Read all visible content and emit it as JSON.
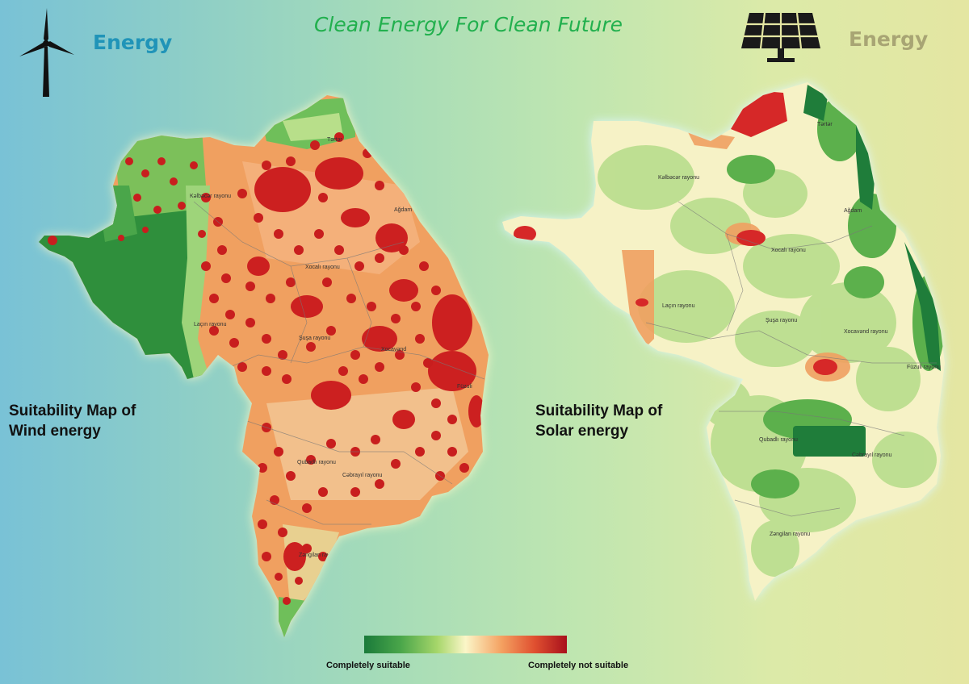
{
  "header": {
    "title": "Clean Energy For Clean Future",
    "left_label": "Energy",
    "right_label": "Energy",
    "left_icon": "wind-turbine-icon",
    "right_icon": "solar-panel-icon"
  },
  "maps": {
    "wind": {
      "caption_line1": "Suitability Map of",
      "caption_line2": "Wind energy",
      "district_labels": [
        "Kəlbəcər rayonu",
        "Tərtər",
        "Ağdam",
        "Xocalı rayonu",
        "Laçın rayonu",
        "Şuşa rayonu",
        "Xocavənd",
        "Füzuli",
        "Qubadlı rayonu",
        "Cəbrayıl rayonu",
        "Zəngilan rayonu"
      ]
    },
    "solar": {
      "caption_line1": "Suitability Map of",
      "caption_line2": "Solar energy",
      "district_labels": [
        "Kəlbəcər rayonu",
        "Tərtər",
        "Ağdam",
        "Xocalı rayonu",
        "Laçın rayonu",
        "Şuşa rayonu",
        "Xocavənd rayonu",
        "Füzuli rayonu",
        "Qubadlı rayonu",
        "Cəbrayıl rayonu",
        "Zəngilan rayonu"
      ]
    }
  },
  "legend": {
    "low_label": "Completely suitable",
    "high_label": "Completely not suitable",
    "colors": [
      "#1a7a3a",
      "#4aa64a",
      "#a6d66a",
      "#fbf6c8",
      "#f4a060",
      "#e05030",
      "#a8101c"
    ]
  }
}
